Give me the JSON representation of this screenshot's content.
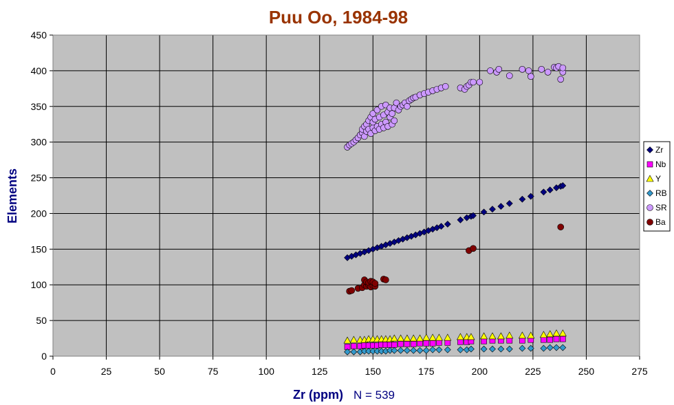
{
  "chart_data": {
    "type": "scatter",
    "title": "Puu Oo, 1984-98",
    "xlabel": "Zr (ppm)",
    "x_note": "N = 539",
    "ylabel": "Elements",
    "xlim": [
      0,
      275
    ],
    "ylim": [
      0,
      450
    ],
    "xticks": [
      "0",
      "25",
      "50",
      "75",
      "100",
      "125",
      "150",
      "175",
      "200",
      "225",
      "250",
      "275"
    ],
    "yticks": [
      "0",
      "50",
      "100",
      "150",
      "200",
      "250",
      "300",
      "350",
      "400",
      "450"
    ],
    "grid": true,
    "legend_position": "right",
    "colors": {
      "title": "#993300",
      "axis_label": "#000080",
      "plot_bg": "#c0c0c0",
      "grid": "#000000"
    },
    "series": [
      {
        "name": "Zr",
        "marker": "diamond",
        "color": "#000080",
        "x": [
          138,
          140,
          142,
          144,
          146,
          148,
          150,
          152,
          154,
          156,
          158,
          160,
          162,
          164,
          166,
          168,
          170,
          172,
          174,
          176,
          178,
          180,
          182,
          185,
          191,
          194,
          196,
          197,
          202,
          206,
          210,
          214,
          220,
          224,
          230,
          233,
          236,
          238,
          239
        ],
        "y": [
          138,
          140,
          142,
          144,
          146,
          148,
          150,
          152,
          154,
          156,
          158,
          160,
          162,
          164,
          166,
          168,
          170,
          172,
          174,
          176,
          178,
          180,
          182,
          185,
          191,
          194,
          196,
          197,
          202,
          206,
          210,
          214,
          220,
          224,
          230,
          233,
          236,
          238,
          239
        ]
      },
      {
        "name": "Nb",
        "marker": "square",
        "color": "#ff00ff",
        "x": [
          138,
          141,
          144,
          146,
          148,
          150,
          152,
          154,
          156,
          158,
          160,
          163,
          166,
          169,
          172,
          175,
          178,
          181,
          185,
          191,
          194,
          196,
          202,
          206,
          210,
          214,
          220,
          224,
          230,
          233,
          236,
          239
        ],
        "y": [
          13,
          14,
          14,
          15,
          15,
          15,
          15,
          16,
          16,
          16,
          16,
          17,
          17,
          17,
          18,
          18,
          18,
          19,
          19,
          20,
          20,
          21,
          21,
          22,
          22,
          22,
          22,
          23,
          23,
          23,
          24,
          24
        ]
      },
      {
        "name": "Y",
        "marker": "triangle",
        "color": "#ffff00",
        "x": [
          138,
          141,
          144,
          146,
          148,
          150,
          152,
          154,
          156,
          158,
          160,
          163,
          166,
          169,
          172,
          175,
          178,
          181,
          185,
          191,
          194,
          196,
          202,
          206,
          210,
          214,
          220,
          224,
          230,
          233,
          236,
          239
        ],
        "y": [
          22,
          23,
          23,
          23,
          24,
          24,
          24,
          24,
          24,
          24,
          25,
          25,
          25,
          25,
          25,
          26,
          26,
          26,
          26,
          27,
          27,
          27,
          28,
          28,
          28,
          29,
          29,
          29,
          30,
          31,
          32,
          32
        ]
      },
      {
        "name": "RB",
        "marker": "diamond",
        "color": "#3399cc",
        "x": [
          138,
          141,
          144,
          146,
          148,
          150,
          152,
          154,
          156,
          158,
          160,
          163,
          166,
          169,
          172,
          175,
          178,
          181,
          185,
          191,
          194,
          196,
          202,
          206,
          210,
          214,
          220,
          224,
          230,
          233,
          236,
          239
        ],
        "y": [
          6,
          6,
          6,
          7,
          7,
          7,
          7,
          7,
          7,
          8,
          8,
          8,
          8,
          8,
          8,
          8,
          9,
          9,
          9,
          9,
          9,
          10,
          10,
          10,
          10,
          10,
          11,
          11,
          11,
          12,
          12,
          12
        ]
      },
      {
        "name": "SR",
        "marker": "circle",
        "color": "#cc99ff",
        "x": [
          138,
          139,
          140,
          141,
          142,
          143,
          144,
          145,
          145,
          146,
          146,
          147,
          147,
          148,
          148,
          149,
          149,
          150,
          150,
          150,
          151,
          151,
          152,
          152,
          153,
          153,
          154,
          154,
          155,
          155,
          156,
          156,
          157,
          157,
          158,
          158,
          159,
          159,
          160,
          160,
          161,
          162,
          163,
          164,
          165,
          166,
          167,
          168,
          169,
          170,
          172,
          174,
          176,
          178,
          180,
          182,
          184,
          191,
          193,
          194,
          195,
          196,
          197,
          200,
          205,
          208,
          209,
          214,
          220,
          223,
          224,
          229,
          232,
          235,
          236,
          237,
          238,
          239,
          239
        ],
        "y": [
          293,
          296,
          298,
          300,
          303,
          306,
          310,
          313,
          318,
          308,
          322,
          315,
          325,
          318,
          330,
          312,
          335,
          320,
          328,
          340,
          316,
          332,
          322,
          345,
          318,
          335,
          325,
          350,
          320,
          338,
          328,
          352,
          322,
          342,
          335,
          348,
          325,
          340,
          330,
          348,
          355,
          345,
          350,
          352,
          355,
          350,
          358,
          360,
          362,
          363,
          366,
          368,
          370,
          372,
          374,
          376,
          378,
          376,
          374,
          378,
          380,
          384,
          384,
          384,
          400,
          398,
          402,
          393,
          402,
          400,
          392,
          402,
          398,
          405,
          404,
          406,
          388,
          398,
          404
        ]
      },
      {
        "name": "Ba",
        "marker": "circle",
        "color": "#800000",
        "x": [
          139,
          140,
          143,
          145,
          146,
          146,
          147,
          147,
          148,
          148,
          149,
          149,
          150,
          150,
          151,
          151,
          155,
          156,
          195,
          197,
          238
        ],
        "y": [
          91,
          92,
          95,
          96,
          100,
          107,
          98,
          104,
          100,
          103,
          97,
          105,
          99,
          104,
          98,
          102,
          108,
          107,
          148,
          151,
          181
        ]
      }
    ]
  }
}
